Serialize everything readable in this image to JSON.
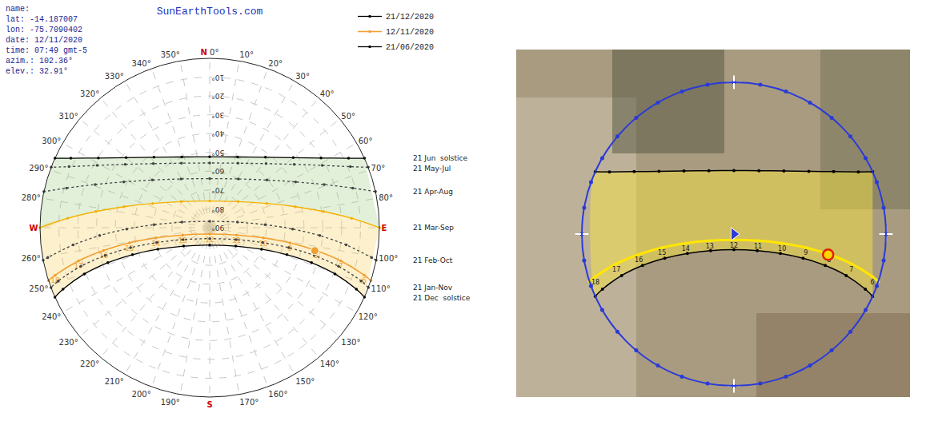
{
  "chart_data": [
    {
      "type": "polar",
      "title": "SunEarthTools.com",
      "info": [
        "name:",
        "lat: -14.187007",
        "lon: -75.7090402",
        "date: 12/11/2020",
        "time: 07:49 gmt-5",
        "azim.: 102.36°",
        "elev.: 32.91°"
      ],
      "xticks": [
        {
          "value": 0,
          "label": "0°"
        },
        {
          "value": 10,
          "label": "10°"
        },
        {
          "value": 20,
          "label": "20°"
        },
        {
          "value": 30,
          "label": "30°"
        },
        {
          "value": 40,
          "label": "40°"
        },
        {
          "value": 50,
          "label": "50°"
        },
        {
          "value": 60,
          "label": "60°"
        },
        {
          "value": 70,
          "label": "70°"
        },
        {
          "value": 80,
          "label": "80°"
        },
        {
          "value": 100,
          "label": "100°"
        },
        {
          "value": 110,
          "label": "110°"
        },
        {
          "value": 120,
          "label": "120°"
        },
        {
          "value": 130,
          "label": "130°"
        },
        {
          "value": 140,
          "label": "140°"
        },
        {
          "value": 150,
          "label": "150°"
        },
        {
          "value": 160,
          "label": "160°"
        },
        {
          "value": 170,
          "label": "170°"
        },
        {
          "value": 190,
          "label": "190°"
        },
        {
          "value": 200,
          "label": "200°"
        },
        {
          "value": 210,
          "label": "210°"
        },
        {
          "value": 220,
          "label": "220°"
        },
        {
          "value": 230,
          "label": "230°"
        },
        {
          "value": 240,
          "label": "240°"
        },
        {
          "value": 250,
          "label": "250°"
        },
        {
          "value": 260,
          "label": "260°"
        },
        {
          "value": 280,
          "label": "280°"
        },
        {
          "value": 290,
          "label": "290°"
        },
        {
          "value": 300,
          "label": "300°"
        },
        {
          "value": 310,
          "label": "310°"
        },
        {
          "value": 320,
          "label": "320°"
        },
        {
          "value": 330,
          "label": "330°"
        },
        {
          "value": 340,
          "label": "340°"
        },
        {
          "value": 350,
          "label": "350°"
        }
      ],
      "ylim": [
        90,
        0
      ],
      "yticks": [
        {
          "value": 10,
          "label": "10°"
        },
        {
          "value": 20,
          "label": "20°"
        },
        {
          "value": 30,
          "label": "30°"
        },
        {
          "value": 40,
          "label": "40°"
        },
        {
          "value": 50,
          "label": "50°"
        },
        {
          "value": 60,
          "label": "60°"
        },
        {
          "value": 70,
          "label": "70°"
        },
        {
          "value": 80,
          "label": "80°"
        },
        {
          "value": 90,
          "label": "90°"
        }
      ],
      "cardinals": [
        {
          "value": 0,
          "label": "N",
          "color": "#cc0000"
        },
        {
          "value": 90,
          "label": "E",
          "color": "#cc0000"
        },
        {
          "value": 180,
          "label": "S",
          "color": "#cc0000"
        },
        {
          "value": 270,
          "label": "W",
          "color": "#cc0000"
        }
      ],
      "grid": true,
      "legend": "top right",
      "series": [
        {
          "label": "21 Dec  solstice",
          "name": "21/12/2020",
          "color": "#000000",
          "line_style": "solid",
          "marker": "circle",
          "azimuth": [
            114.2,
            112.8,
            110.3,
            109.0,
            109.3,
            112.6,
            125.3,
            180,
            234.7,
            247.4,
            250.7,
            251.0,
            249.7,
            247.2,
            245.8
          ],
          "elevation": [
            0,
            5.6,
            19.13,
            32.84,
            46.6,
            60.21,
            73.07,
            80.75,
            73.07,
            60.21,
            46.6,
            32.84,
            19.13,
            5.6,
            0
          ]
        },
        {
          "name": "12/11/2020",
          "color": "#f0a030",
          "line_style": "solid",
          "marker": "circle",
          "azimuth": [
            108.2,
            107.1,
            104.2,
            102.1,
            100.7,
            100.8,
            105.3,
            180,
            254.7,
            259.2,
            259.3,
            257.9,
            255.8,
            252.9,
            251.8
          ],
          "elevation": [
            0,
            4.25,
            18.26,
            32.43,
            46.69,
            60.99,
            75.2,
            86.59,
            75.2,
            60.99,
            46.69,
            32.43,
            18.26,
            4.25,
            0
          ],
          "hours": [
            null,
            6,
            7,
            8,
            9,
            10,
            11,
            12,
            13,
            14,
            15,
            16,
            17,
            18,
            null
          ]
        },
        {
          "label": "21 Jan-Nov",
          "color": "#444444",
          "line_style": "dotted",
          "marker": "circle",
          "azimuth": [
            110.7,
            109.4,
            106.7,
            104.9,
            104.2,
            105.7,
            114.2,
            180,
            245.8,
            254.3,
            255.8,
            255.1,
            253.3,
            250.6,
            249.3
          ],
          "elevation": [
            0,
            4.81,
            18.64,
            32.64,
            46.73,
            60.79,
            74.55,
            84.19,
            74.55,
            60.79,
            46.73,
            32.64,
            18.64,
            4.81,
            0
          ]
        },
        {
          "label": "21 Feb-Oct",
          "color": "#444444",
          "line_style": "dotted",
          "marker": "circle",
          "azimuth": [
            101.1,
            100.5,
            97.2,
            94.1,
            90.9,
            86.9,
            78.7,
            0,
            281.3,
            273.1,
            269.1,
            265.9,
            262.8,
            259.5,
            258.9
          ],
          "elevation": [
            0,
            2.63,
            17.01,
            31.48,
            46.0,
            60.54,
            74.97,
            86.61,
            74.97,
            60.54,
            46.0,
            31.48,
            17.01,
            2.63,
            0
          ]
        },
        {
          "label": "21 Mar-Sep",
          "color": "#f5b000",
          "line_style": "solid",
          "marker": "circle",
          "azimuth": [
            90,
            86.2,
            81.9,
            76.2,
            67.0,
            47.5,
            0,
            312.5,
            293.0,
            283.8,
            278.1,
            273.8,
            270
          ],
          "elevation": [
            0,
            14.53,
            29.0,
            43.27,
            57.09,
            69.49,
            75.81,
            69.49,
            57.09,
            43.27,
            29.0,
            14.53,
            0
          ]
        },
        {
          "label": "21 Apr-Aug",
          "color": "#444444",
          "line_style": "dotted",
          "marker": "circle",
          "azimuth": [
            77.7,
            74.5,
            69.3,
            61.9,
            50.2,
            30.4,
            0,
            329.6,
            309.8,
            298.1,
            290.7,
            285.5,
            282.3
          ],
          "elevation": [
            0,
            11.24,
            25.08,
            38.33,
            50.44,
            59.98,
            63.92,
            59.98,
            50.44,
            38.33,
            25.08,
            11.24,
            0
          ]
        },
        {
          "label": "21 May-Jul",
          "color": "#444444",
          "line_style": "dotted",
          "marker": "circle",
          "azimuth": [
            69.1,
            66.5,
            61.0,
            53.1,
            41.3,
            23.6,
            0,
            336.4,
            318.7,
            306.9,
            299.0,
            293.5,
            290.9
          ],
          "elevation": [
            0,
            8.67,
            21.73,
            33.96,
            44.69,
            52.57,
            55.61,
            52.57,
            44.69,
            33.96,
            21.73,
            8.67,
            0
          ]
        },
        {
          "label": "21 Jun  solstice",
          "name": "21/06/2020",
          "color": "#000000",
          "line_style": "solid",
          "marker": "circle",
          "azimuth": [
            65.8,
            63.4,
            57.9,
            50.0,
            38.3,
            21.5,
            0,
            338.5,
            321.7,
            310.0,
            302.1,
            296.6,
            294.2
          ],
          "elevation": [
            0,
            7.62,
            20.32,
            32.11,
            42.28,
            49.61,
            52.37,
            49.61,
            42.28,
            32.11,
            20.32,
            7.62,
            0
          ]
        }
      ],
      "current": {
        "azimuth": 102.36,
        "elevation": 32.91,
        "color": "#f0a030"
      }
    },
    {
      "type": "polar_map",
      "xticks": [
        0,
        10,
        20,
        30,
        40,
        50,
        60,
        70,
        80,
        90,
        100,
        110,
        120,
        130,
        140,
        150,
        160,
        170,
        180,
        190,
        200,
        210,
        220,
        230,
        240,
        250,
        260,
        270,
        280,
        290,
        300,
        310,
        320,
        330,
        340,
        350
      ],
      "ylim": [
        90,
        0
      ],
      "tick_labels": false,
      "grid": false,
      "series": [
        {
          "color": "#000000",
          "line_style": "solid",
          "marker": "circle",
          "azimuth": [
            65.8,
            63.4,
            57.9,
            50.0,
            38.3,
            21.5,
            0,
            338.5,
            321.7,
            310.0,
            302.1,
            296.6,
            294.2
          ],
          "elevation": [
            0,
            7.62,
            20.32,
            32.11,
            42.28,
            49.61,
            52.37,
            49.61,
            42.28,
            32.11,
            20.32,
            7.62,
            0
          ]
        },
        {
          "color": "#000000",
          "line_style": "solid",
          "marker": "circle",
          "azimuth": [
            114.2,
            112.8,
            110.3,
            109.0,
            109.3,
            112.6,
            125.3,
            180,
            234.7,
            247.4,
            250.7,
            251.0,
            249.7,
            247.2,
            245.8
          ],
          "elevation": [
            0,
            5.6,
            19.13,
            32.84,
            46.6,
            60.21,
            73.07,
            80.75,
            73.07,
            60.21,
            46.6,
            32.84,
            19.13,
            5.6,
            0
          ]
        },
        {
          "color": "#ffe600",
          "line_style": "solid",
          "marker": "circle",
          "azimuth": [
            108.2,
            107.1,
            104.2,
            102.1,
            100.7,
            100.8,
            105.3,
            180,
            254.7,
            259.2,
            259.3,
            257.9,
            255.8,
            252.9,
            251.8
          ],
          "elevation": [
            0,
            4.25,
            18.26,
            32.43,
            46.69,
            60.99,
            75.2,
            86.59,
            75.2,
            60.99,
            46.69,
            32.43,
            18.26,
            4.25,
            0
          ],
          "hours": [
            null,
            6,
            7,
            8,
            9,
            10,
            11,
            12,
            13,
            14,
            15,
            16,
            17,
            18,
            null
          ]
        }
      ],
      "current": {
        "azimuth": 102.36,
        "elevation": 32.91
      }
    }
  ]
}
